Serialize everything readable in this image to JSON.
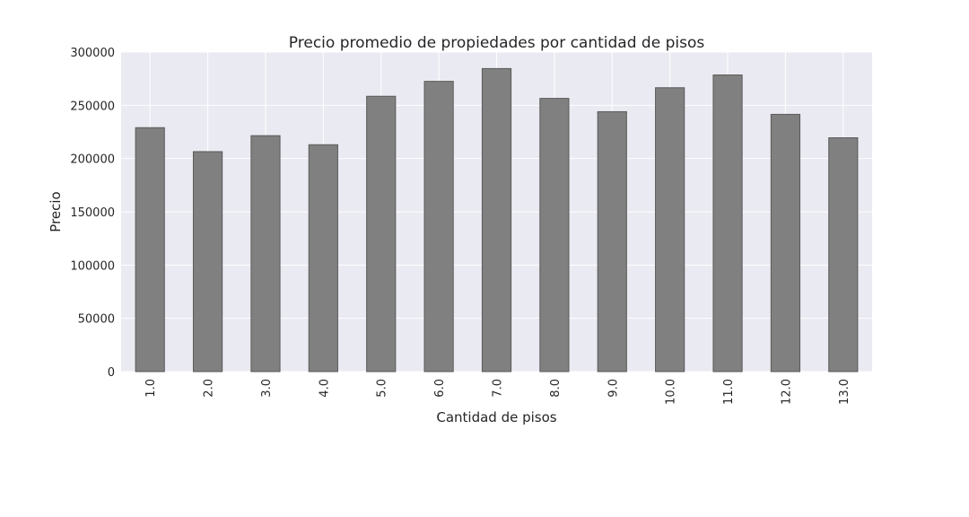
{
  "chart_data": {
    "type": "bar",
    "title": "Precio promedio de propiedades por cantidad de pisos",
    "xlabel": "Cantidad de pisos",
    "ylabel": "Precio",
    "categories": [
      "1.0",
      "2.0",
      "3.0",
      "4.0",
      "5.0",
      "6.0",
      "7.0",
      "8.0",
      "9.0",
      "10.0",
      "11.0",
      "12.0",
      "13.0"
    ],
    "values": [
      229000,
      206500,
      221500,
      213000,
      258500,
      272500,
      284500,
      256500,
      244000,
      266500,
      278500,
      241500,
      219500
    ],
    "ylim": [
      0,
      300000
    ],
    "yticks": [
      0,
      50000,
      100000,
      150000,
      200000,
      250000,
      300000
    ],
    "ytick_labels": [
      "0",
      "50000",
      "100000",
      "150000",
      "200000",
      "250000",
      "300000"
    ],
    "grid": true,
    "colors": {
      "bar": "#808080",
      "bar_edge": "#5a5a5a",
      "background": "#eaeaf2",
      "grid": "#ffffff"
    }
  }
}
